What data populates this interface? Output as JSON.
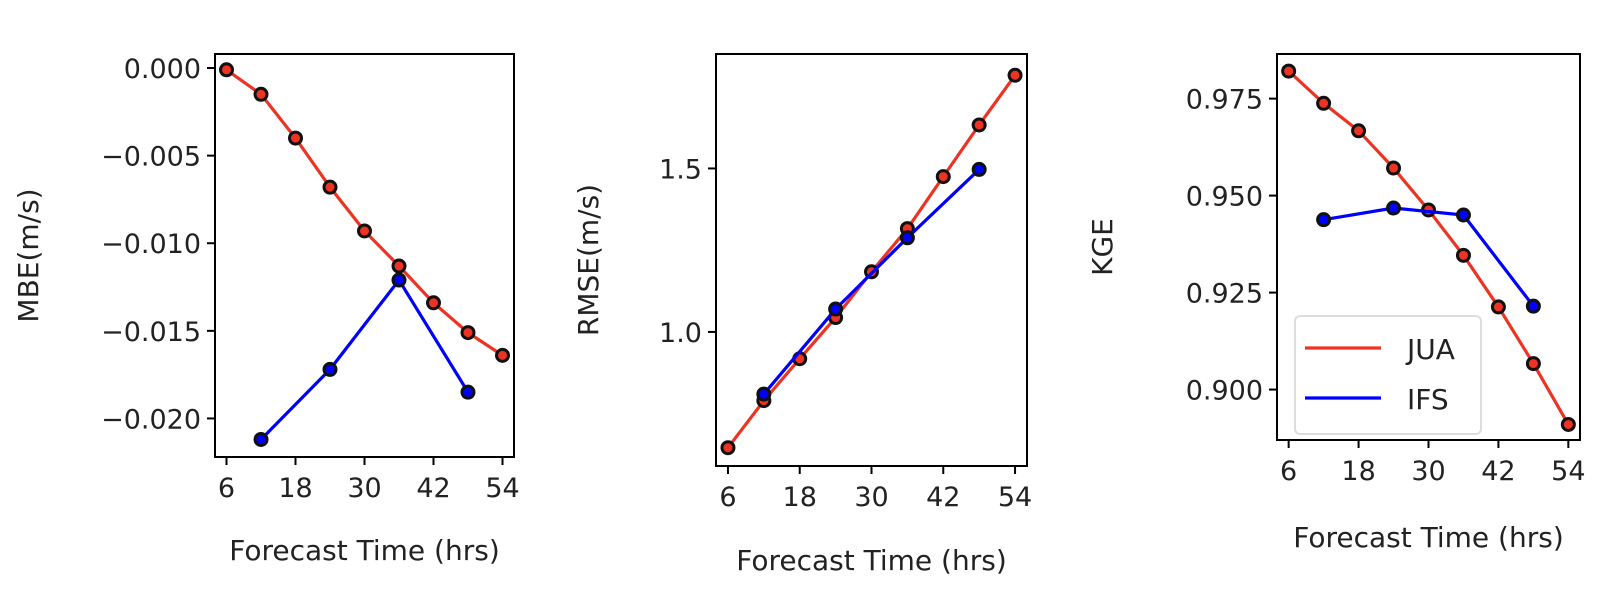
{
  "colors": {
    "JUA": "#ee3322",
    "IFS": "#0000ff",
    "marker": "#111111"
  },
  "chart_data": [
    {
      "type": "line",
      "title": "",
      "xlabel": "Forecast Time (hrs)",
      "ylabel": "MBE(m/s)",
      "xticks": [
        6,
        18,
        30,
        42,
        54
      ],
      "yticks": [
        0.0,
        -0.005,
        -0.01,
        -0.015,
        -0.02
      ],
      "ytick_labels": [
        "0.000",
        "−0.005",
        "−0.010",
        "−0.015",
        "−0.020"
      ],
      "xlim": [
        4,
        56
      ],
      "ylim": [
        -0.0222,
        0.0008
      ],
      "series": [
        {
          "name": "JUA",
          "x": [
            6,
            12,
            18,
            24,
            30,
            36,
            42,
            48,
            54
          ],
          "y": [
            -0.0001,
            -0.0015,
            -0.004,
            -0.0068,
            -0.0093,
            -0.0113,
            -0.0134,
            -0.0151,
            -0.0164
          ]
        },
        {
          "name": "IFS",
          "x": [
            12,
            24,
            36,
            48
          ],
          "y": [
            -0.0212,
            -0.0172,
            -0.0121,
            -0.0185
          ]
        }
      ]
    },
    {
      "type": "line",
      "title": "",
      "xlabel": "Forecast Time (hrs)",
      "ylabel": "RMSE(m/s)",
      "xticks": [
        6,
        18,
        30,
        42,
        54
      ],
      "yticks": [
        1.0,
        1.5
      ],
      "ytick_labels": [
        "1.0",
        "1.5"
      ],
      "xlim": [
        4,
        56
      ],
      "ylim": [
        0.59,
        1.85
      ],
      "series": [
        {
          "name": "JUA",
          "x": [
            6,
            12,
            18,
            24,
            30,
            36,
            42,
            48,
            54
          ],
          "y": [
            0.646,
            0.79,
            0.918,
            1.044,
            1.184,
            1.316,
            1.475,
            1.633,
            1.785
          ]
        },
        {
          "name": "IFS",
          "x": [
            12,
            24,
            36,
            48
          ],
          "y": [
            0.81,
            1.07,
            1.288,
            1.497
          ]
        }
      ]
    },
    {
      "type": "line",
      "title": "",
      "xlabel": "Forecast Time (hrs)",
      "ylabel": "KGE",
      "xticks": [
        6,
        18,
        30,
        42,
        54
      ],
      "yticks": [
        0.975,
        0.95,
        0.925,
        0.9
      ],
      "ytick_labels": [
        "0.975",
        "0.950",
        "0.925",
        "0.900"
      ],
      "xlim": [
        4,
        56
      ],
      "ylim": [
        0.887,
        0.9865
      ],
      "legend": {
        "position": "lower-left",
        "entries": [
          "JUA",
          "IFS"
        ]
      },
      "series": [
        {
          "name": "JUA",
          "x": [
            6,
            12,
            18,
            24,
            30,
            36,
            42,
            48,
            54
          ],
          "y": [
            0.9821,
            0.9738,
            0.9667,
            0.9571,
            0.9463,
            0.9346,
            0.9213,
            0.9067,
            0.891
          ]
        },
        {
          "name": "IFS",
          "x": [
            12,
            24,
            36,
            48
          ],
          "y": [
            0.9438,
            0.9468,
            0.945,
            0.9215
          ]
        }
      ]
    }
  ]
}
